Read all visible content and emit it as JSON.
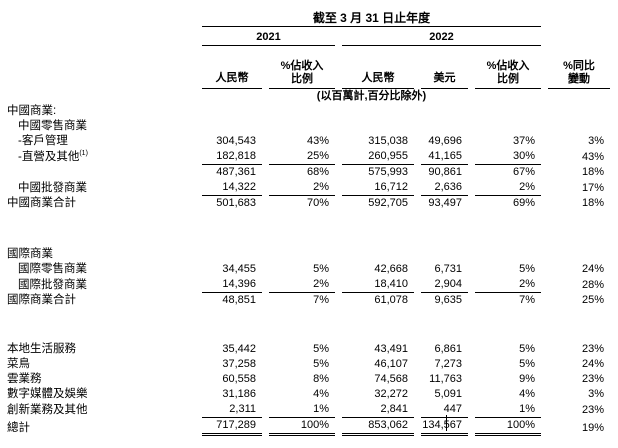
{
  "header": {
    "period_title": "截至 3 月 31 日止年度",
    "year_2021": "2021",
    "year_2022": "2022",
    "col_rmb_2021": "人民幣",
    "col_pct_rev_2021_1": "%佔收入",
    "col_pct_rev_2021_2": "比例",
    "col_rmb_2022": "人民幣",
    "col_usd_2022": "美元",
    "col_pct_rev_2022_1": "%佔收入",
    "col_pct_rev_2022_2": "比例",
    "col_yoy_1": "%同比",
    "col_yoy_2": "變動",
    "unit_note": "(以百萬計,百分比除外)"
  },
  "rows": [
    {
      "label": "中國商業:",
      "values": []
    },
    {
      "label": "中國零售商業",
      "values": []
    },
    {
      "label": "-客戶管理",
      "values": [
        "304,543",
        "43%",
        "315,038",
        "49,696",
        "37%",
        "3%"
      ]
    },
    {
      "label": "-直營及其他",
      "sup": "(1)",
      "values": [
        "182,818",
        "25%",
        "260,955",
        "41,165",
        "30%",
        "43%"
      ]
    },
    {
      "label": "",
      "values": [
        "487,361",
        "68%",
        "575,993",
        "90,861",
        "67%",
        "18%"
      ]
    },
    {
      "label": "中國批發商業",
      "values": [
        "14,322",
        "2%",
        "16,712",
        "2,636",
        "2%",
        "17%"
      ]
    },
    {
      "label": "中國商業合計",
      "values": [
        "501,683",
        "70%",
        "592,705",
        "93,497",
        "69%",
        "18%"
      ]
    },
    {
      "label": "國際商業",
      "values": []
    },
    {
      "label": "國際零售商業",
      "values": [
        "34,455",
        "5%",
        "42,668",
        "6,731",
        "5%",
        "24%"
      ]
    },
    {
      "label": "國際批發商業",
      "values": [
        "14,396",
        "2%",
        "18,410",
        "2,904",
        "2%",
        "28%"
      ]
    },
    {
      "label": "國際商業合計",
      "values": [
        "48,851",
        "7%",
        "61,078",
        "9,635",
        "7%",
        "25%"
      ]
    },
    {
      "label": "本地生活服務",
      "values": [
        "35,442",
        "5%",
        "43,491",
        "6,861",
        "5%",
        "23%"
      ]
    },
    {
      "label": "菜鳥",
      "values": [
        "37,258",
        "5%",
        "46,107",
        "7,273",
        "5%",
        "24%"
      ]
    },
    {
      "label": "雲業務",
      "values": [
        "60,558",
        "8%",
        "74,568",
        "11,763",
        "9%",
        "23%"
      ]
    },
    {
      "label": "數字媒體及娛樂",
      "values": [
        "31,186",
        "4%",
        "32,272",
        "5,091",
        "4%",
        "3%"
      ]
    },
    {
      "label": "創新業務及其他",
      "values": [
        "2,311",
        "1%",
        "2,841",
        "447",
        "1%",
        "23%"
      ]
    },
    {
      "label": "總計",
      "values": [
        "717,289",
        "100%",
        "853,062",
        "134,567",
        "100%",
        "19%"
      ]
    }
  ]
}
